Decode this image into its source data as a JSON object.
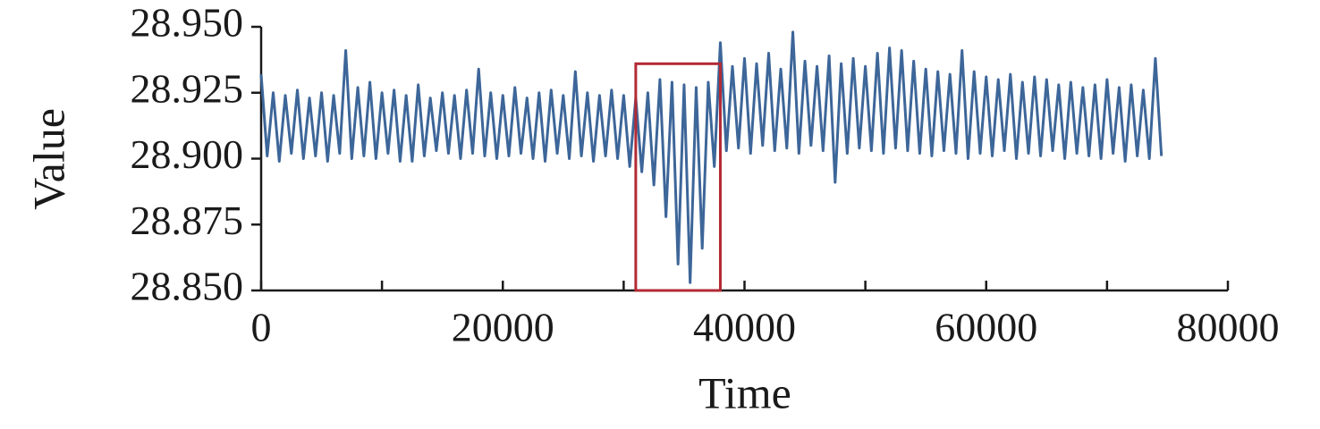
{
  "chart_data": {
    "type": "line",
    "x_label": "Time",
    "y_label": "Value",
    "xlim": [
      0,
      80000
    ],
    "xticks": [
      0,
      20000,
      40000,
      60000,
      80000
    ],
    "x_minor_ticks": [
      10000,
      30000,
      50000,
      70000
    ],
    "ylim": [
      28.85,
      28.95
    ],
    "yticks": [
      {
        "value": 28.85,
        "label": "28.850"
      },
      {
        "value": 28.875,
        "label": "28.875"
      },
      {
        "value": 28.9,
        "label": "28.900"
      },
      {
        "value": 28.925,
        "label": "28.925"
      },
      {
        "value": 28.95,
        "label": "28.950"
      }
    ],
    "highlight_box": {
      "xlim": [
        31000,
        38000
      ],
      "ylim": [
        28.85,
        28.936
      ],
      "color": "#b22a35"
    },
    "x": [
      0,
      500,
      1000,
      1500,
      2000,
      2500,
      3000,
      3500,
      4000,
      4500,
      5000,
      5500,
      6000,
      6500,
      7000,
      7500,
      8000,
      8500,
      9000,
      9500,
      10000,
      10500,
      11000,
      11500,
      12000,
      12500,
      13000,
      13500,
      14000,
      14500,
      15000,
      15500,
      16000,
      16500,
      17000,
      17500,
      18000,
      18500,
      19000,
      19500,
      20000,
      20500,
      21000,
      21500,
      22000,
      22500,
      23000,
      23500,
      24000,
      24500,
      25000,
      25500,
      26000,
      26500,
      27000,
      27500,
      28000,
      28500,
      29000,
      29500,
      30000,
      30500,
      31000,
      31500,
      32000,
      32500,
      33000,
      33500,
      34000,
      34500,
      35000,
      35500,
      36000,
      36500,
      37000,
      37500,
      38000,
      38500,
      39000,
      39500,
      40000,
      40500,
      41000,
      41500,
      42000,
      42500,
      43000,
      43500,
      44000,
      44500,
      45000,
      45500,
      46000,
      46500,
      47000,
      47500,
      48000,
      48500,
      49000,
      49500,
      50000,
      50500,
      51000,
      51500,
      52000,
      52500,
      53000,
      53500,
      54000,
      54500,
      55000,
      55500,
      56000,
      56500,
      57000,
      57500,
      58000,
      58500,
      59000,
      59500,
      60000,
      60500,
      61000,
      61500,
      62000,
      62500,
      63000,
      63500,
      64000,
      64500,
      65000,
      65500,
      66000,
      66500,
      67000,
      67500,
      68000,
      68500,
      69000,
      69500,
      70000,
      70500,
      71000,
      71500,
      72000,
      72500,
      73000,
      73500,
      74000,
      74500
    ],
    "series": [
      {
        "name": "Value",
        "color": "#3d6699",
        "values": [
          28.932,
          28.901,
          28.925,
          28.899,
          28.924,
          28.902,
          28.926,
          28.9,
          28.923,
          28.901,
          28.925,
          28.899,
          28.924,
          28.902,
          28.941,
          28.9,
          28.927,
          28.901,
          28.929,
          28.9,
          28.925,
          28.902,
          28.926,
          28.899,
          28.924,
          28.899,
          28.928,
          28.901,
          28.923,
          28.903,
          28.925,
          28.902,
          28.924,
          28.9,
          28.926,
          28.902,
          28.934,
          28.901,
          28.925,
          28.9,
          28.924,
          28.901,
          28.927,
          28.902,
          28.923,
          28.9,
          28.925,
          28.899,
          28.926,
          28.902,
          28.924,
          28.9,
          28.933,
          28.901,
          28.925,
          28.899,
          28.924,
          28.901,
          28.926,
          28.9,
          28.924,
          28.897,
          28.923,
          28.895,
          28.925,
          28.89,
          28.93,
          28.878,
          28.929,
          28.86,
          28.928,
          28.853,
          28.927,
          28.866,
          28.929,
          28.897,
          28.944,
          28.903,
          28.935,
          28.904,
          28.938,
          28.902,
          28.936,
          28.905,
          28.94,
          28.903,
          28.934,
          28.904,
          28.948,
          28.902,
          28.937,
          28.905,
          28.935,
          28.903,
          28.939,
          28.891,
          28.936,
          28.902,
          28.938,
          28.904,
          28.935,
          28.903,
          28.94,
          28.902,
          28.942,
          28.904,
          28.941,
          28.903,
          28.937,
          28.902,
          28.934,
          28.901,
          28.933,
          28.903,
          28.932,
          28.902,
          28.941,
          28.9,
          28.933,
          28.902,
          28.931,
          28.901,
          28.93,
          28.903,
          28.932,
          28.9,
          28.929,
          28.902,
          28.931,
          28.901,
          28.93,
          28.903,
          28.928,
          28.9,
          28.929,
          28.902,
          28.927,
          28.901,
          28.928,
          28.9,
          28.93,
          28.902,
          28.927,
          28.899,
          28.928,
          28.901,
          28.926,
          28.9,
          28.938,
          28.901
        ]
      }
    ]
  }
}
